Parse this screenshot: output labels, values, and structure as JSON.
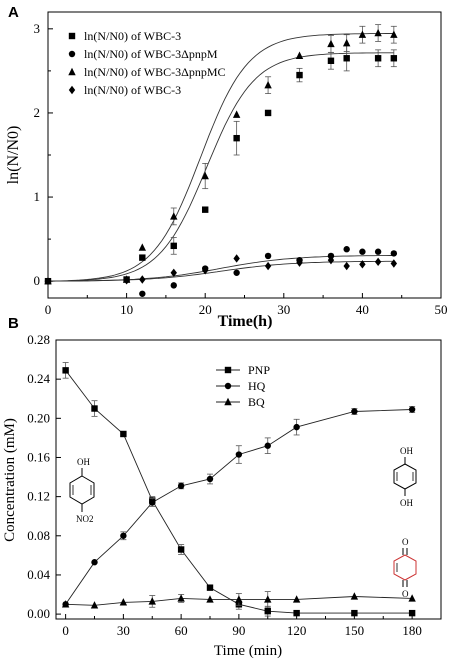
{
  "chart_data": [
    {
      "panel": "A",
      "type": "scatter",
      "xlabel": "Time(h)",
      "ylabel": "ln(N/N0)",
      "xlim": [
        0,
        50
      ],
      "ylim": [
        -0.2,
        3.2
      ],
      "xticks": [
        "0",
        "10",
        "20",
        "30",
        "40",
        "50"
      ],
      "yticks": [
        "0",
        "1",
        "2",
        "3"
      ],
      "legend_position": "top-left",
      "series": [
        {
          "name": "ln(N/N0) of WBC-3",
          "marker": "square",
          "x": [
            0,
            10,
            12,
            16,
            20,
            24,
            28,
            32,
            36,
            38,
            42,
            44
          ],
          "y": [
            0,
            0.02,
            0.28,
            0.42,
            0.85,
            1.7,
            2.0,
            2.45,
            2.62,
            2.65,
            2.65,
            2.65
          ],
          "err": [
            0,
            0,
            0,
            0.1,
            0,
            0.2,
            0,
            0.08,
            0.1,
            0.15,
            0.1,
            0.1
          ]
        },
        {
          "name": "ln(N/N0) of WBC-3ΔpnpM",
          "marker": "circle",
          "x": [
            0,
            12,
            16,
            20,
            24,
            28,
            32,
            36,
            38,
            40,
            42,
            44
          ],
          "y": [
            0,
            -0.15,
            -0.05,
            0.15,
            0.1,
            0.3,
            0.25,
            0.3,
            0.38,
            0.35,
            0.35,
            0.33
          ],
          "err": [
            0,
            0,
            0,
            0,
            0,
            0,
            0,
            0,
            0,
            0,
            0,
            0
          ]
        },
        {
          "name": "ln(N/N0) of WBC-3ΔpnpMC",
          "marker": "triangle",
          "x": [
            0,
            10,
            12,
            16,
            20,
            24,
            28,
            32,
            36,
            38,
            40,
            42,
            44
          ],
          "y": [
            0,
            0.02,
            0.4,
            0.77,
            1.25,
            1.98,
            2.33,
            2.68,
            2.82,
            2.83,
            2.93,
            2.95,
            2.93
          ],
          "err": [
            0,
            0,
            0,
            0.1,
            0.15,
            0,
            0.1,
            0,
            0.1,
            0.1,
            0.1,
            0.1,
            0.1
          ]
        },
        {
          "name": "ln(N/N0) of WBC-3",
          "marker": "diamond",
          "x": [
            0,
            10,
            12,
            16,
            20,
            24,
            28,
            32,
            36,
            38,
            40,
            42,
            44
          ],
          "y": [
            0,
            0.01,
            0.02,
            0.1,
            0.13,
            0.27,
            0.18,
            0.22,
            0.25,
            0.18,
            0.2,
            0.23,
            0.21
          ],
          "err": [
            0,
            0,
            0,
            0,
            0,
            0,
            0,
            0,
            0,
            0,
            0,
            0,
            0
          ]
        }
      ],
      "fitted_curves": [
        {
          "L": 2.72,
          "k": 0.33,
          "x0": 20.2
        },
        {
          "L": 2.95,
          "k": 0.33,
          "x0": 19.4
        },
        {
          "L": 0.31,
          "k": 0.22,
          "x0": 22
        },
        {
          "L": 0.24,
          "k": 0.22,
          "x0": 22
        }
      ]
    },
    {
      "panel": "B",
      "type": "line",
      "xlabel": "Time (min)",
      "ylabel": "Concentration (mM)",
      "xlim": [
        -5,
        195
      ],
      "ylim": [
        -0.005,
        0.28
      ],
      "xticks": [
        "0",
        "30",
        "60",
        "90",
        "120",
        "150",
        "180"
      ],
      "yticks": [
        "0.00",
        "0.04",
        "0.08",
        "0.12",
        "0.16",
        "0.20",
        "0.24",
        "0.28"
      ],
      "legend_position": "top-center",
      "series": [
        {
          "name": "PNP",
          "marker": "square",
          "x": [
            0,
            15,
            30,
            45,
            60,
            75,
            90,
            105,
            120,
            150,
            180
          ],
          "y": [
            0.249,
            0.21,
            0.184,
            0.116,
            0.066,
            0.027,
            0.01,
            0.003,
            0.001,
            0.001,
            0.001
          ],
          "err": [
            0.008,
            0.008,
            0,
            0.004,
            0.005,
            0,
            0.005,
            0.005,
            0,
            0,
            0
          ]
        },
        {
          "name": "HQ",
          "marker": "circle",
          "x": [
            0,
            15,
            30,
            45,
            60,
            75,
            90,
            105,
            120,
            150,
            180
          ],
          "y": [
            0.01,
            0.053,
            0.08,
            0.114,
            0.131,
            0.138,
            0.163,
            0.172,
            0.191,
            0.207,
            0.209
          ],
          "err": [
            0,
            0,
            0.004,
            0.004,
            0.003,
            0.005,
            0.009,
            0.008,
            0.008,
            0.003,
            0.003
          ]
        },
        {
          "name": "BQ",
          "marker": "triangle",
          "x": [
            0,
            15,
            30,
            45,
            60,
            75,
            90,
            105,
            120,
            150,
            180
          ],
          "y": [
            0.01,
            0.009,
            0.012,
            0.013,
            0.016,
            0.015,
            0.015,
            0.015,
            0.015,
            0.018,
            0.016
          ],
          "err": [
            0,
            0,
            0,
            0.006,
            0.004,
            0,
            0.006,
            0.008,
            0,
            0,
            0
          ]
        }
      ],
      "structures": [
        {
          "name": "4-nitrophenol",
          "labels": [
            "OH",
            "NO2"
          ]
        },
        {
          "name": "hydroquinone",
          "labels": [
            "OH",
            "OH"
          ]
        },
        {
          "name": "benzoquinone",
          "labels": [
            "O",
            "O"
          ]
        }
      ]
    }
  ]
}
